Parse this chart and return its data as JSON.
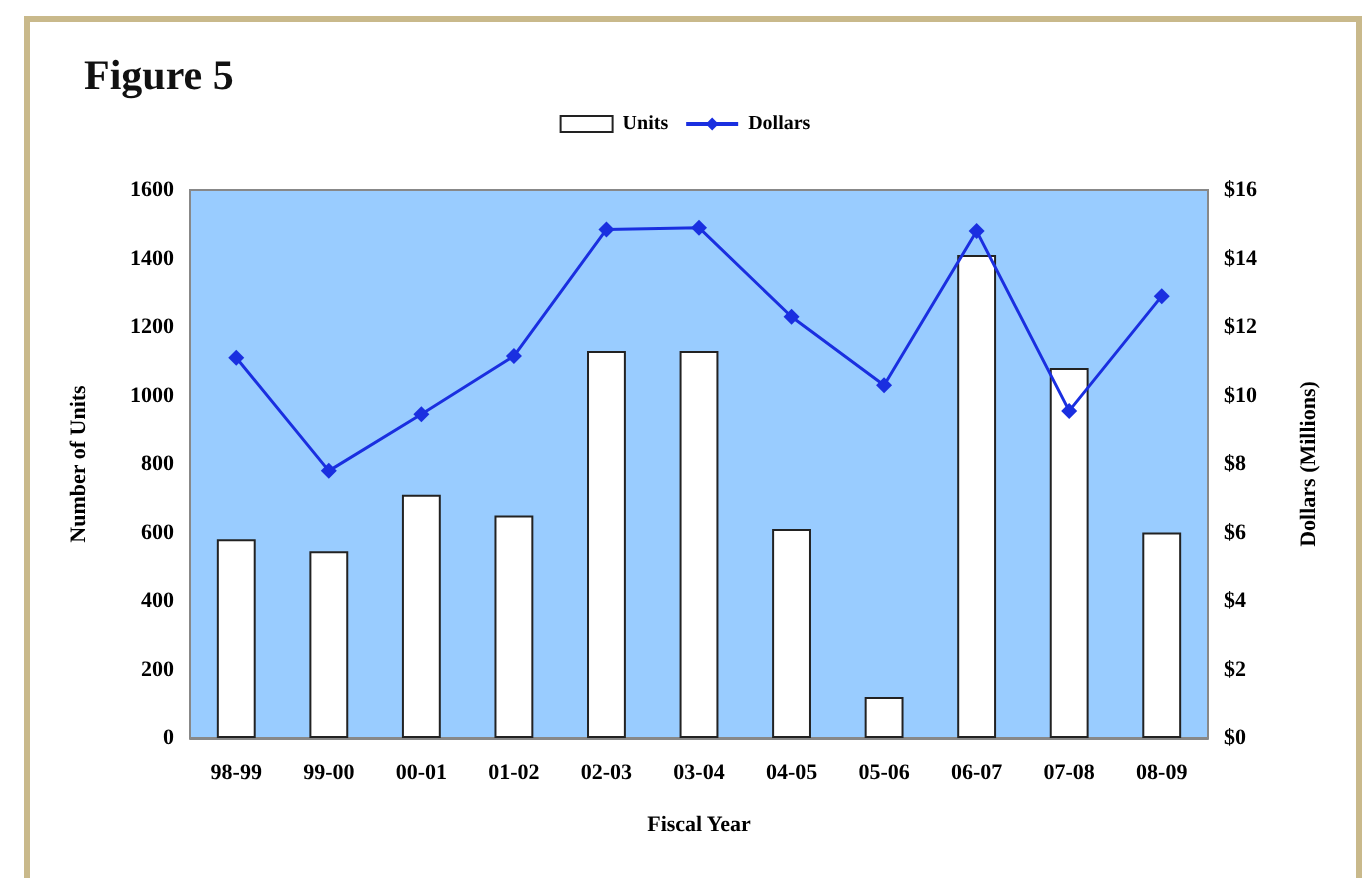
{
  "chart_data": {
    "type": "bar",
    "title": "Figure 5",
    "xlabel": "Fiscal Year",
    "ylabel": "Number of Units",
    "y2label": "Dollars (Millions)",
    "categories": [
      "98-99",
      "99-00",
      "00-01",
      "01-02",
      "02-03",
      "03-04",
      "04-05",
      "05-06",
      "06-07",
      "07-08",
      "08-09"
    ],
    "series": [
      {
        "name": "Units",
        "color": "#ffffff",
        "values": [
          580,
          545,
          710,
          650,
          1130,
          1130,
          610,
          120,
          1410,
          1080,
          600
        ]
      },
      {
        "name": "Dollars",
        "type": "line",
        "axis": "y2",
        "color": "#1a2fe0",
        "values": [
          11.1,
          7.8,
          9.45,
          11.15,
          14.85,
          14.9,
          12.3,
          10.3,
          14.8,
          9.55,
          12.9
        ]
      }
    ],
    "ylim": [
      0,
      1600
    ],
    "yticks": [
      0,
      200,
      400,
      600,
      800,
      1000,
      1200,
      1400,
      1600
    ],
    "y2lim": [
      0,
      16
    ],
    "y2ticks": [
      {
        "value": 0,
        "label": "$0"
      },
      {
        "value": 2,
        "label": "$2"
      },
      {
        "value": 4,
        "label": "$4"
      },
      {
        "value": 6,
        "label": "$6"
      },
      {
        "value": 8,
        "label": "$8"
      },
      {
        "value": 10,
        "label": "$10"
      },
      {
        "value": 12,
        "label": "$12"
      },
      {
        "value": 14,
        "label": "$14"
      },
      {
        "value": 16,
        "label": "$16"
      }
    ],
    "legend": "top",
    "marker": "diamond",
    "line_style": "solid"
  }
}
